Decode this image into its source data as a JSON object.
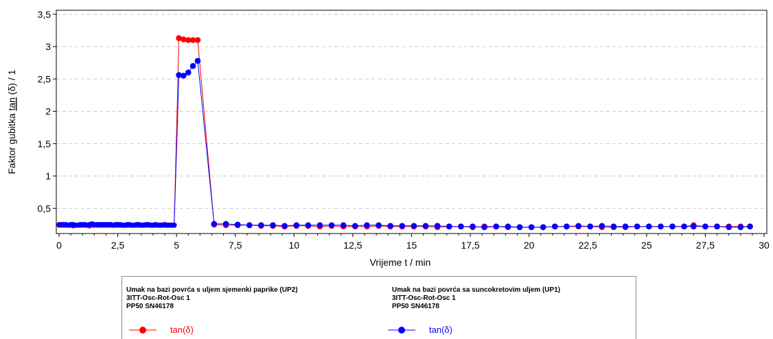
{
  "chart_data": {
    "type": "line",
    "xlabel": "Vrijeme t / min",
    "ylabel_prefix": "Faktor gubitka ",
    "ylabel_tan": "tan",
    "ylabel_suffix": " (δ) / 1",
    "xlim": [
      0,
      30
    ],
    "ylim": [
      0.1,
      3.5
    ],
    "xticks": [
      0,
      2.5,
      5,
      7.5,
      10,
      12.5,
      15,
      17.5,
      20,
      22.5,
      25,
      27.5,
      30
    ],
    "xtick_labels": [
      "0",
      "2,5",
      "5",
      "7,5",
      "10",
      "12,5",
      "15",
      "17,5",
      "20",
      "22,5",
      "25",
      "27,5",
      "30"
    ],
    "yticks": [
      0.5,
      1,
      1.5,
      2,
      2.5,
      3,
      3.5
    ],
    "ytick_labels": [
      "0,5",
      "1",
      "1,5",
      "2",
      "2,5",
      "3",
      "3,5"
    ],
    "grid": "horizontal-dashed",
    "series": [
      {
        "name": "tan(δ)",
        "color": "#ff0000",
        "marker": "circle",
        "legend": {
          "title": "Umak na bazi povrća s uljem sjemenki paprike (UP2)",
          "line2": "3ITT-Osc-Rot-Osc 1",
          "line3": "PP50 SN46178"
        },
        "points": [
          [
            0,
            0.24
          ],
          [
            0.1,
            0.24
          ],
          [
            0.2,
            0.24
          ],
          [
            0.3,
            0.24
          ],
          [
            0.4,
            0.24
          ],
          [
            0.5,
            0.24
          ],
          [
            0.6,
            0.23
          ],
          [
            0.7,
            0.24
          ],
          [
            0.8,
            0.24
          ],
          [
            0.9,
            0.24
          ],
          [
            1.0,
            0.24
          ],
          [
            1.1,
            0.24
          ],
          [
            1.2,
            0.24
          ],
          [
            1.3,
            0.23
          ],
          [
            1.4,
            0.24
          ],
          [
            1.5,
            0.24
          ],
          [
            1.6,
            0.24
          ],
          [
            1.7,
            0.24
          ],
          [
            1.8,
            0.24
          ],
          [
            1.9,
            0.24
          ],
          [
            2.0,
            0.24
          ],
          [
            2.1,
            0.24
          ],
          [
            2.2,
            0.24
          ],
          [
            2.3,
            0.24
          ],
          [
            2.4,
            0.24
          ],
          [
            2.5,
            0.24
          ],
          [
            2.6,
            0.24
          ],
          [
            2.7,
            0.24
          ],
          [
            2.8,
            0.24
          ],
          [
            2.9,
            0.24
          ],
          [
            3.0,
            0.24
          ],
          [
            3.1,
            0.24
          ],
          [
            3.2,
            0.24
          ],
          [
            3.3,
            0.24
          ],
          [
            3.4,
            0.24
          ],
          [
            3.5,
            0.24
          ],
          [
            3.6,
            0.24
          ],
          [
            3.7,
            0.24
          ],
          [
            3.8,
            0.24
          ],
          [
            3.9,
            0.24
          ],
          [
            4.0,
            0.24
          ],
          [
            4.1,
            0.24
          ],
          [
            4.2,
            0.24
          ],
          [
            4.3,
            0.24
          ],
          [
            4.4,
            0.24
          ],
          [
            4.5,
            0.24
          ],
          [
            4.6,
            0.24
          ],
          [
            4.7,
            0.24
          ],
          [
            4.8,
            0.24
          ],
          [
            4.9,
            0.24
          ],
          [
            5.1,
            3.13
          ],
          [
            5.3,
            3.11
          ],
          [
            5.5,
            3.1
          ],
          [
            5.7,
            3.1
          ],
          [
            5.9,
            3.1
          ],
          [
            6.6,
            0.25
          ],
          [
            7.1,
            0.24
          ],
          [
            7.6,
            0.24
          ],
          [
            8.1,
            0.24
          ],
          [
            8.6,
            0.23
          ],
          [
            9.1,
            0.23
          ],
          [
            9.6,
            0.22
          ],
          [
            10.1,
            0.23
          ],
          [
            10.6,
            0.23
          ],
          [
            11.1,
            0.22
          ],
          [
            11.6,
            0.23
          ],
          [
            12.1,
            0.22
          ],
          [
            12.6,
            0.22
          ],
          [
            13.1,
            0.22
          ],
          [
            13.6,
            0.23
          ],
          [
            14.1,
            0.22
          ],
          [
            14.6,
            0.22
          ],
          [
            15.1,
            0.22
          ],
          [
            15.6,
            0.22
          ],
          [
            16.1,
            0.21
          ],
          [
            16.6,
            0.22
          ],
          [
            17.1,
            0.22
          ],
          [
            17.6,
            0.21
          ],
          [
            18.1,
            0.22
          ],
          [
            18.6,
            0.22
          ],
          [
            19.1,
            0.21
          ],
          [
            19.6,
            0.21
          ],
          [
            20.1,
            0.21
          ],
          [
            20.6,
            0.21
          ],
          [
            21.1,
            0.22
          ],
          [
            21.6,
            0.22
          ],
          [
            22.1,
            0.22
          ],
          [
            22.6,
            0.22
          ],
          [
            23.1,
            0.21
          ],
          [
            23.6,
            0.21
          ],
          [
            24.1,
            0.21
          ],
          [
            24.6,
            0.22
          ],
          [
            25.1,
            0.22
          ],
          [
            25.6,
            0.22
          ],
          [
            26.1,
            0.22
          ],
          [
            26.6,
            0.22
          ],
          [
            27.0,
            0.24
          ],
          [
            27.5,
            0.22
          ],
          [
            28.0,
            0.22
          ],
          [
            28.5,
            0.22
          ],
          [
            29.0,
            0.22
          ],
          [
            29.4,
            0.22
          ]
        ]
      },
      {
        "name": "tan(δ)",
        "color": "#0000ff",
        "marker": "circle",
        "legend": {
          "title": "Umak na bazi povrća sa suncokretovim uljem (UP1)",
          "line2": "3ITT-Osc-Rot-Osc 1",
          "line3": "PP50 SN46178"
        },
        "points": [
          [
            0,
            0.25
          ],
          [
            0.1,
            0.25
          ],
          [
            0.2,
            0.25
          ],
          [
            0.3,
            0.25
          ],
          [
            0.4,
            0.24
          ],
          [
            0.5,
            0.25
          ],
          [
            0.6,
            0.25
          ],
          [
            0.7,
            0.24
          ],
          [
            0.8,
            0.24
          ],
          [
            0.9,
            0.25
          ],
          [
            1.0,
            0.25
          ],
          [
            1.1,
            0.25
          ],
          [
            1.2,
            0.24
          ],
          [
            1.3,
            0.25
          ],
          [
            1.4,
            0.26
          ],
          [
            1.5,
            0.25
          ],
          [
            1.6,
            0.25
          ],
          [
            1.7,
            0.25
          ],
          [
            1.8,
            0.25
          ],
          [
            1.9,
            0.25
          ],
          [
            2.0,
            0.25
          ],
          [
            2.1,
            0.25
          ],
          [
            2.2,
            0.25
          ],
          [
            2.3,
            0.24
          ],
          [
            2.4,
            0.25
          ],
          [
            2.5,
            0.25
          ],
          [
            2.6,
            0.25
          ],
          [
            2.7,
            0.24
          ],
          [
            2.8,
            0.24
          ],
          [
            2.9,
            0.25
          ],
          [
            3.0,
            0.25
          ],
          [
            3.1,
            0.24
          ],
          [
            3.2,
            0.24
          ],
          [
            3.3,
            0.25
          ],
          [
            3.4,
            0.25
          ],
          [
            3.5,
            0.24
          ],
          [
            3.6,
            0.24
          ],
          [
            3.7,
            0.25
          ],
          [
            3.8,
            0.25
          ],
          [
            3.9,
            0.24
          ],
          [
            4.0,
            0.24
          ],
          [
            4.1,
            0.25
          ],
          [
            4.2,
            0.24
          ],
          [
            4.3,
            0.24
          ],
          [
            4.4,
            0.24
          ],
          [
            4.5,
            0.25
          ],
          [
            4.6,
            0.24
          ],
          [
            4.7,
            0.24
          ],
          [
            4.8,
            0.24
          ],
          [
            4.9,
            0.24
          ],
          [
            5.1,
            2.56
          ],
          [
            5.3,
            2.55
          ],
          [
            5.5,
            2.6
          ],
          [
            5.7,
            2.7
          ],
          [
            5.9,
            2.78
          ],
          [
            6.6,
            0.26
          ],
          [
            7.1,
            0.26
          ],
          [
            7.6,
            0.25
          ],
          [
            8.1,
            0.24
          ],
          [
            8.6,
            0.24
          ],
          [
            9.1,
            0.24
          ],
          [
            9.6,
            0.23
          ],
          [
            10.1,
            0.24
          ],
          [
            10.6,
            0.24
          ],
          [
            11.1,
            0.24
          ],
          [
            11.6,
            0.24
          ],
          [
            12.1,
            0.24
          ],
          [
            12.6,
            0.23
          ],
          [
            13.1,
            0.24
          ],
          [
            13.6,
            0.24
          ],
          [
            14.1,
            0.23
          ],
          [
            14.6,
            0.23
          ],
          [
            15.1,
            0.23
          ],
          [
            15.6,
            0.23
          ],
          [
            16.1,
            0.23
          ],
          [
            16.6,
            0.22
          ],
          [
            17.1,
            0.22
          ],
          [
            17.6,
            0.22
          ],
          [
            18.1,
            0.21
          ],
          [
            18.6,
            0.22
          ],
          [
            19.1,
            0.22
          ],
          [
            19.6,
            0.21
          ],
          [
            20.1,
            0.21
          ],
          [
            20.6,
            0.21
          ],
          [
            21.1,
            0.22
          ],
          [
            21.6,
            0.22
          ],
          [
            22.1,
            0.23
          ],
          [
            22.6,
            0.22
          ],
          [
            23.1,
            0.23
          ],
          [
            23.6,
            0.22
          ],
          [
            24.1,
            0.22
          ],
          [
            24.6,
            0.22
          ],
          [
            25.1,
            0.22
          ],
          [
            25.6,
            0.22
          ],
          [
            26.1,
            0.22
          ],
          [
            26.6,
            0.22
          ],
          [
            27.0,
            0.22
          ],
          [
            27.5,
            0.22
          ],
          [
            28.0,
            0.22
          ],
          [
            28.5,
            0.21
          ],
          [
            29.0,
            0.21
          ],
          [
            29.4,
            0.22
          ]
        ]
      }
    ]
  }
}
